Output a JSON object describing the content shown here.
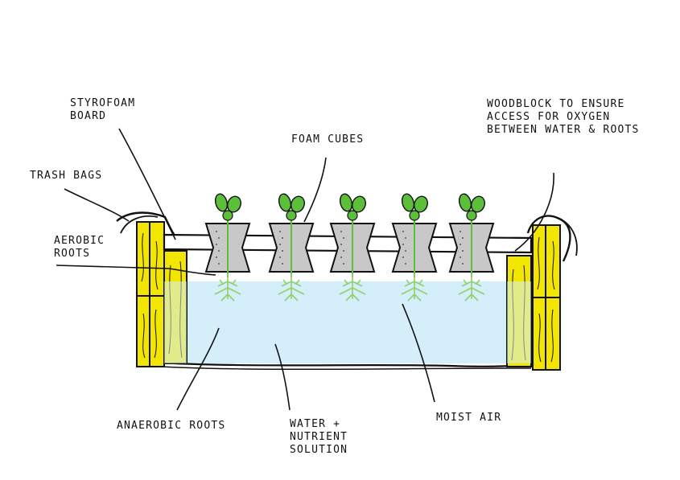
{
  "labels": {
    "styrofoam": [
      "STYROFOAM",
      "BOARD"
    ],
    "trash_bags": "TRASH BAGS",
    "aerobic": [
      "AEROBIC",
      "ROOTS"
    ],
    "foam_cubes": "FOAM CUBES",
    "woodblock": [
      "WOODBLOCK TO ENSURE",
      "ACCESS FOR OXYGEN",
      "BETWEEN WATER & ROOTS"
    ],
    "anaerobic": "ANAEROBIC ROOTS",
    "water": [
      "WATER +",
      "NUTRIENT",
      "SOLUTION"
    ],
    "moist_air": "MOIST AIR"
  },
  "colors": {
    "wood": "#f2e600",
    "water": "#d4eefa",
    "foam": "#c8c8c8",
    "leaf": "#5cbf3a",
    "root": "#8fd16a",
    "stroke": "#111111"
  }
}
